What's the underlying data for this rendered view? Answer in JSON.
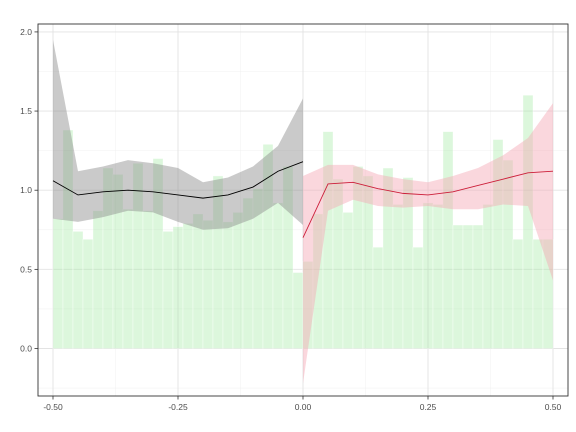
{
  "chart_data": {
    "type": "bar",
    "title": "",
    "xlabel": "",
    "ylabel": "",
    "xlim": [
      -0.53,
      0.53
    ],
    "ylim": [
      -0.3,
      2.05
    ],
    "grid": true,
    "legend": "none",
    "x_ticks": [
      {
        "value": -0.5,
        "label": "-0.50"
      },
      {
        "value": -0.25,
        "label": "-0.25"
      },
      {
        "value": 0.0,
        "label": "0.00"
      },
      {
        "value": 0.25,
        "label": "0.25"
      },
      {
        "value": 0.5,
        "label": "0.50"
      }
    ],
    "y_ticks": [
      {
        "value": 0.0,
        "label": "0.0"
      },
      {
        "value": 0.5,
        "label": "0.5"
      },
      {
        "value": 1.0,
        "label": "1.0"
      },
      {
        "value": 1.5,
        "label": "1.5"
      },
      {
        "value": 2.0,
        "label": "2.0"
      }
    ],
    "bars": {
      "color": "#9be89b",
      "bin_width": 0.02,
      "x": [
        -0.49,
        -0.47,
        -0.45,
        -0.43,
        -0.41,
        -0.39,
        -0.37,
        -0.35,
        -0.33,
        -0.31,
        -0.29,
        -0.27,
        -0.25,
        -0.23,
        -0.21,
        -0.19,
        -0.17,
        -0.15,
        -0.13,
        -0.11,
        -0.09,
        -0.07,
        -0.05,
        -0.03,
        -0.01,
        0.01,
        0.03,
        0.05,
        0.07,
        0.09,
        0.11,
        0.13,
        0.15,
        0.17,
        0.19,
        0.21,
        0.23,
        0.25,
        0.27,
        0.29,
        0.31,
        0.33,
        0.35,
        0.37,
        0.39,
        0.41,
        0.43,
        0.45,
        0.47,
        0.49
      ],
      "values": [
        0.82,
        1.38,
        0.74,
        0.69,
        0.87,
        1.14,
        1.1,
        0.88,
        1.17,
        0.87,
        1.2,
        0.74,
        0.77,
        0.79,
        0.85,
        0.81,
        1.09,
        0.8,
        0.86,
        0.95,
        1.01,
        1.29,
        0.92,
        1.15,
        0.48,
        0.55,
        0.85,
        1.37,
        1.07,
        0.86,
        1.15,
        1.09,
        0.64,
        1.14,
        0.91,
        1.08,
        0.64,
        0.92,
        0.91,
        1.37,
        0.78,
        0.78,
        0.78,
        0.91,
        1.32,
        1.19,
        0.69,
        1.6,
        0.69,
        0.69
      ]
    },
    "series": [
      {
        "color": "#000000",
        "band_color": "#8a8a8a",
        "x": [
          -0.5,
          -0.45,
          -0.4,
          -0.35,
          -0.3,
          -0.25,
          -0.2,
          -0.15,
          -0.1,
          -0.05,
          0.0
        ],
        "y": [
          1.06,
          0.97,
          0.99,
          1.0,
          0.99,
          0.97,
          0.95,
          0.97,
          1.02,
          1.12,
          1.18
        ],
        "lower": [
          0.82,
          0.8,
          0.83,
          0.87,
          0.86,
          0.8,
          0.75,
          0.76,
          0.82,
          0.92,
          0.78
        ],
        "upper": [
          1.95,
          1.12,
          1.15,
          1.19,
          1.17,
          1.14,
          1.05,
          1.08,
          1.15,
          1.28,
          1.58
        ]
      },
      {
        "color": "#cc1f3a",
        "band_color": "#f4a6b4",
        "x": [
          0.0,
          0.05,
          0.1,
          0.15,
          0.2,
          0.25,
          0.3,
          0.35,
          0.4,
          0.45,
          0.5
        ],
        "y": [
          0.7,
          1.04,
          1.05,
          1.01,
          0.98,
          0.97,
          0.99,
          1.03,
          1.07,
          1.11,
          1.12
        ],
        "lower": [
          -0.22,
          0.87,
          0.94,
          0.9,
          0.89,
          0.9,
          0.88,
          0.88,
          0.91,
          0.9,
          0.43
        ],
        "upper": [
          1.09,
          1.16,
          1.16,
          1.1,
          1.07,
          1.05,
          1.09,
          1.14,
          1.22,
          1.33,
          1.55
        ]
      }
    ]
  }
}
